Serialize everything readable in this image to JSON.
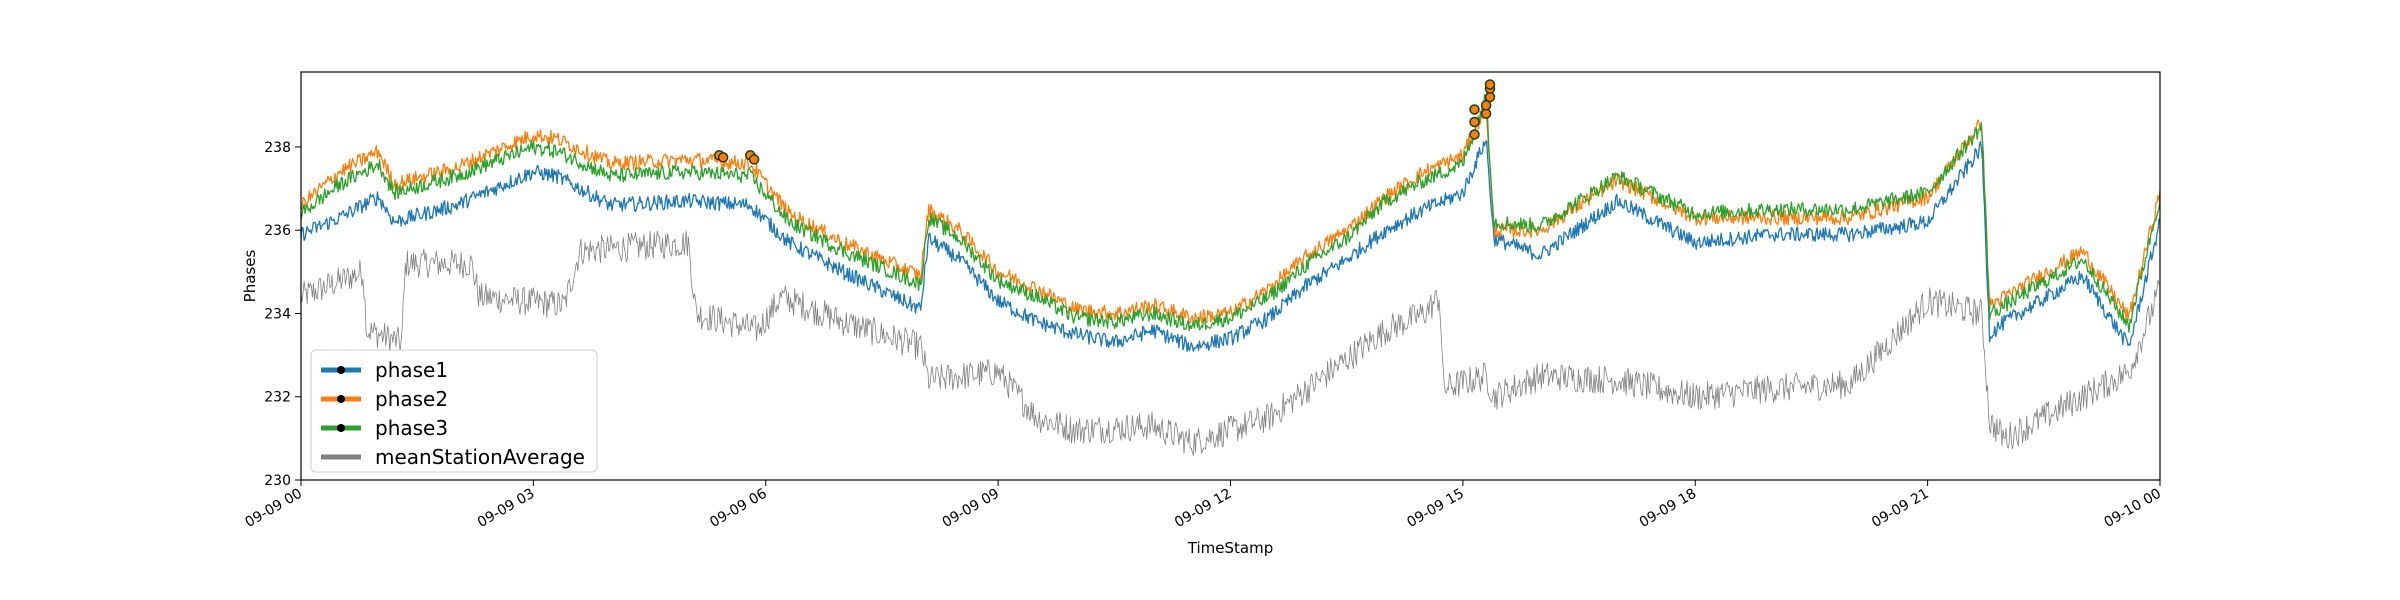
{
  "chart_data": {
    "type": "line",
    "title": "",
    "xlabel": "TimeStamp",
    "ylabel": "Phases",
    "xlim": [
      "09-09 00",
      "09-10 00"
    ],
    "ylim": [
      230,
      239.8
    ],
    "x_unit": "hours from 09-09 00",
    "xticks": [
      {
        "x": 0,
        "label": "09-09 00"
      },
      {
        "x": 3,
        "label": "09-09 03"
      },
      {
        "x": 6,
        "label": "09-09 06"
      },
      {
        "x": 9,
        "label": "09-09 09"
      },
      {
        "x": 12,
        "label": "09-09 12"
      },
      {
        "x": 15,
        "label": "09-09 15"
      },
      {
        "x": 18,
        "label": "09-09 18"
      },
      {
        "x": 21,
        "label": "09-09 21"
      },
      {
        "x": 24,
        "label": "09-10 00"
      }
    ],
    "yticks": [
      230,
      232,
      234,
      236,
      238
    ],
    "legend_position": "lower-left",
    "grid": false,
    "series": [
      {
        "name": "phase1",
        "color": "#1f77b4",
        "marker": "dot",
        "x": [
          0,
          0.5,
          1.0,
          1.2,
          2.0,
          3.0,
          3.3,
          4.0,
          5.0,
          5.8,
          6.3,
          7.0,
          8.0,
          8.1,
          8.5,
          9.0,
          9.5,
          10.0,
          10.5,
          11.0,
          11.5,
          12.0,
          12.5,
          13.0,
          13.5,
          14.0,
          14.5,
          15.0,
          15.3,
          15.4,
          16.0,
          17.0,
          18.0,
          19.0,
          20.0,
          21.0,
          21.7,
          21.8,
          22.0,
          23.0,
          23.6,
          24.0
        ],
        "y": [
          235.9,
          236.3,
          236.8,
          236.2,
          236.6,
          237.4,
          237.3,
          236.6,
          236.7,
          236.6,
          235.7,
          235.0,
          234.1,
          235.8,
          235.3,
          234.3,
          233.8,
          233.5,
          233.3,
          233.6,
          233.2,
          233.4,
          233.9,
          234.7,
          235.3,
          236.0,
          236.5,
          236.9,
          238.2,
          235.8,
          235.4,
          236.7,
          235.7,
          235.9,
          235.9,
          236.2,
          238.0,
          233.5,
          233.8,
          234.9,
          233.2,
          236.2
        ]
      },
      {
        "name": "phase2",
        "color": "#ff7f0e",
        "marker": "dot",
        "x": [
          0,
          0.5,
          1.0,
          1.2,
          2.0,
          3.0,
          3.3,
          4.0,
          5.0,
          5.8,
          6.3,
          7.0,
          8.0,
          8.1,
          8.5,
          9.0,
          9.5,
          10.0,
          10.5,
          11.0,
          11.5,
          12.0,
          12.5,
          13.0,
          13.5,
          14.0,
          14.5,
          15.0,
          15.3,
          15.4,
          16.0,
          17.0,
          18.0,
          19.0,
          20.0,
          21.0,
          21.7,
          21.8,
          22.0,
          23.0,
          23.6,
          24.0
        ],
        "y": [
          236.6,
          237.4,
          237.9,
          237.1,
          237.5,
          238.3,
          238.2,
          237.6,
          237.7,
          237.6,
          236.4,
          235.7,
          234.9,
          236.5,
          236.0,
          235.0,
          234.6,
          234.1,
          234.0,
          234.2,
          233.9,
          234.0,
          234.6,
          235.4,
          236.0,
          236.8,
          237.4,
          237.8,
          239.0,
          236.0,
          236.0,
          237.2,
          236.3,
          236.3,
          236.3,
          236.8,
          238.6,
          234.2,
          234.4,
          235.5,
          233.9,
          236.9
        ]
      },
      {
        "name": "phase3",
        "color": "#2ca02c",
        "marker": "dot",
        "x": [
          0,
          0.5,
          1.0,
          1.2,
          2.0,
          3.0,
          3.3,
          4.0,
          5.0,
          5.8,
          6.3,
          7.0,
          8.0,
          8.1,
          8.5,
          9.0,
          9.5,
          10.0,
          10.5,
          11.0,
          11.5,
          12.0,
          12.5,
          13.0,
          13.5,
          14.0,
          14.5,
          15.0,
          15.3,
          15.4,
          16.0,
          17.0,
          18.0,
          19.0,
          20.0,
          21.0,
          21.7,
          21.8,
          22.0,
          23.0,
          23.6,
          24.0
        ],
        "y": [
          236.4,
          237.1,
          237.6,
          236.9,
          237.3,
          238.0,
          237.9,
          237.3,
          237.4,
          237.3,
          236.2,
          235.5,
          234.7,
          236.3,
          235.8,
          234.8,
          234.4,
          233.9,
          233.8,
          234.0,
          233.7,
          233.9,
          234.4,
          235.2,
          235.8,
          236.7,
          237.2,
          237.6,
          239.2,
          236.2,
          236.1,
          237.3,
          236.4,
          236.5,
          236.5,
          236.9,
          238.5,
          234.0,
          234.2,
          235.3,
          233.7,
          236.8
        ]
      },
      {
        "name": "meanStationAverage",
        "color": "#808080",
        "marker": "none",
        "x": [
          0,
          0.8,
          0.85,
          1.3,
          1.35,
          2.2,
          2.3,
          3.4,
          3.6,
          5.0,
          5.1,
          5.9,
          6.2,
          7.0,
          8.0,
          8.1,
          9.0,
          9.5,
          10.0,
          11.0,
          11.5,
          12.0,
          12.5,
          13.0,
          13.5,
          14.0,
          14.5,
          14.7,
          14.75,
          15.3,
          15.4,
          16.0,
          17.0,
          18.0,
          19.0,
          20.0,
          21.0,
          21.7,
          21.8,
          22.0,
          23.0,
          23.6,
          24.0
        ],
        "y": [
          234.4,
          235.0,
          233.6,
          233.3,
          235.2,
          235.2,
          234.4,
          234.2,
          235.5,
          235.7,
          234.0,
          233.6,
          234.4,
          233.8,
          233.2,
          232.4,
          232.6,
          231.5,
          231.2,
          231.3,
          230.9,
          231.2,
          231.5,
          232.2,
          232.9,
          233.6,
          234.0,
          234.4,
          232.2,
          232.5,
          232.0,
          232.5,
          232.4,
          232.0,
          232.2,
          232.3,
          234.3,
          234.0,
          231.4,
          231.0,
          232.0,
          232.6,
          234.6
        ]
      }
    ],
    "highlight_points": [
      {
        "x": 5.4,
        "y": 237.8
      },
      {
        "x": 5.45,
        "y": 237.75
      },
      {
        "x": 5.8,
        "y": 237.8
      },
      {
        "x": 5.85,
        "y": 237.7
      },
      {
        "x": 15.15,
        "y": 238.3
      },
      {
        "x": 15.15,
        "y": 238.6
      },
      {
        "x": 15.15,
        "y": 238.9
      },
      {
        "x": 15.3,
        "y": 238.8
      },
      {
        "x": 15.3,
        "y": 239.0
      },
      {
        "x": 15.35,
        "y": 239.2
      },
      {
        "x": 15.35,
        "y": 239.4
      },
      {
        "x": 15.35,
        "y": 239.5
      }
    ]
  }
}
